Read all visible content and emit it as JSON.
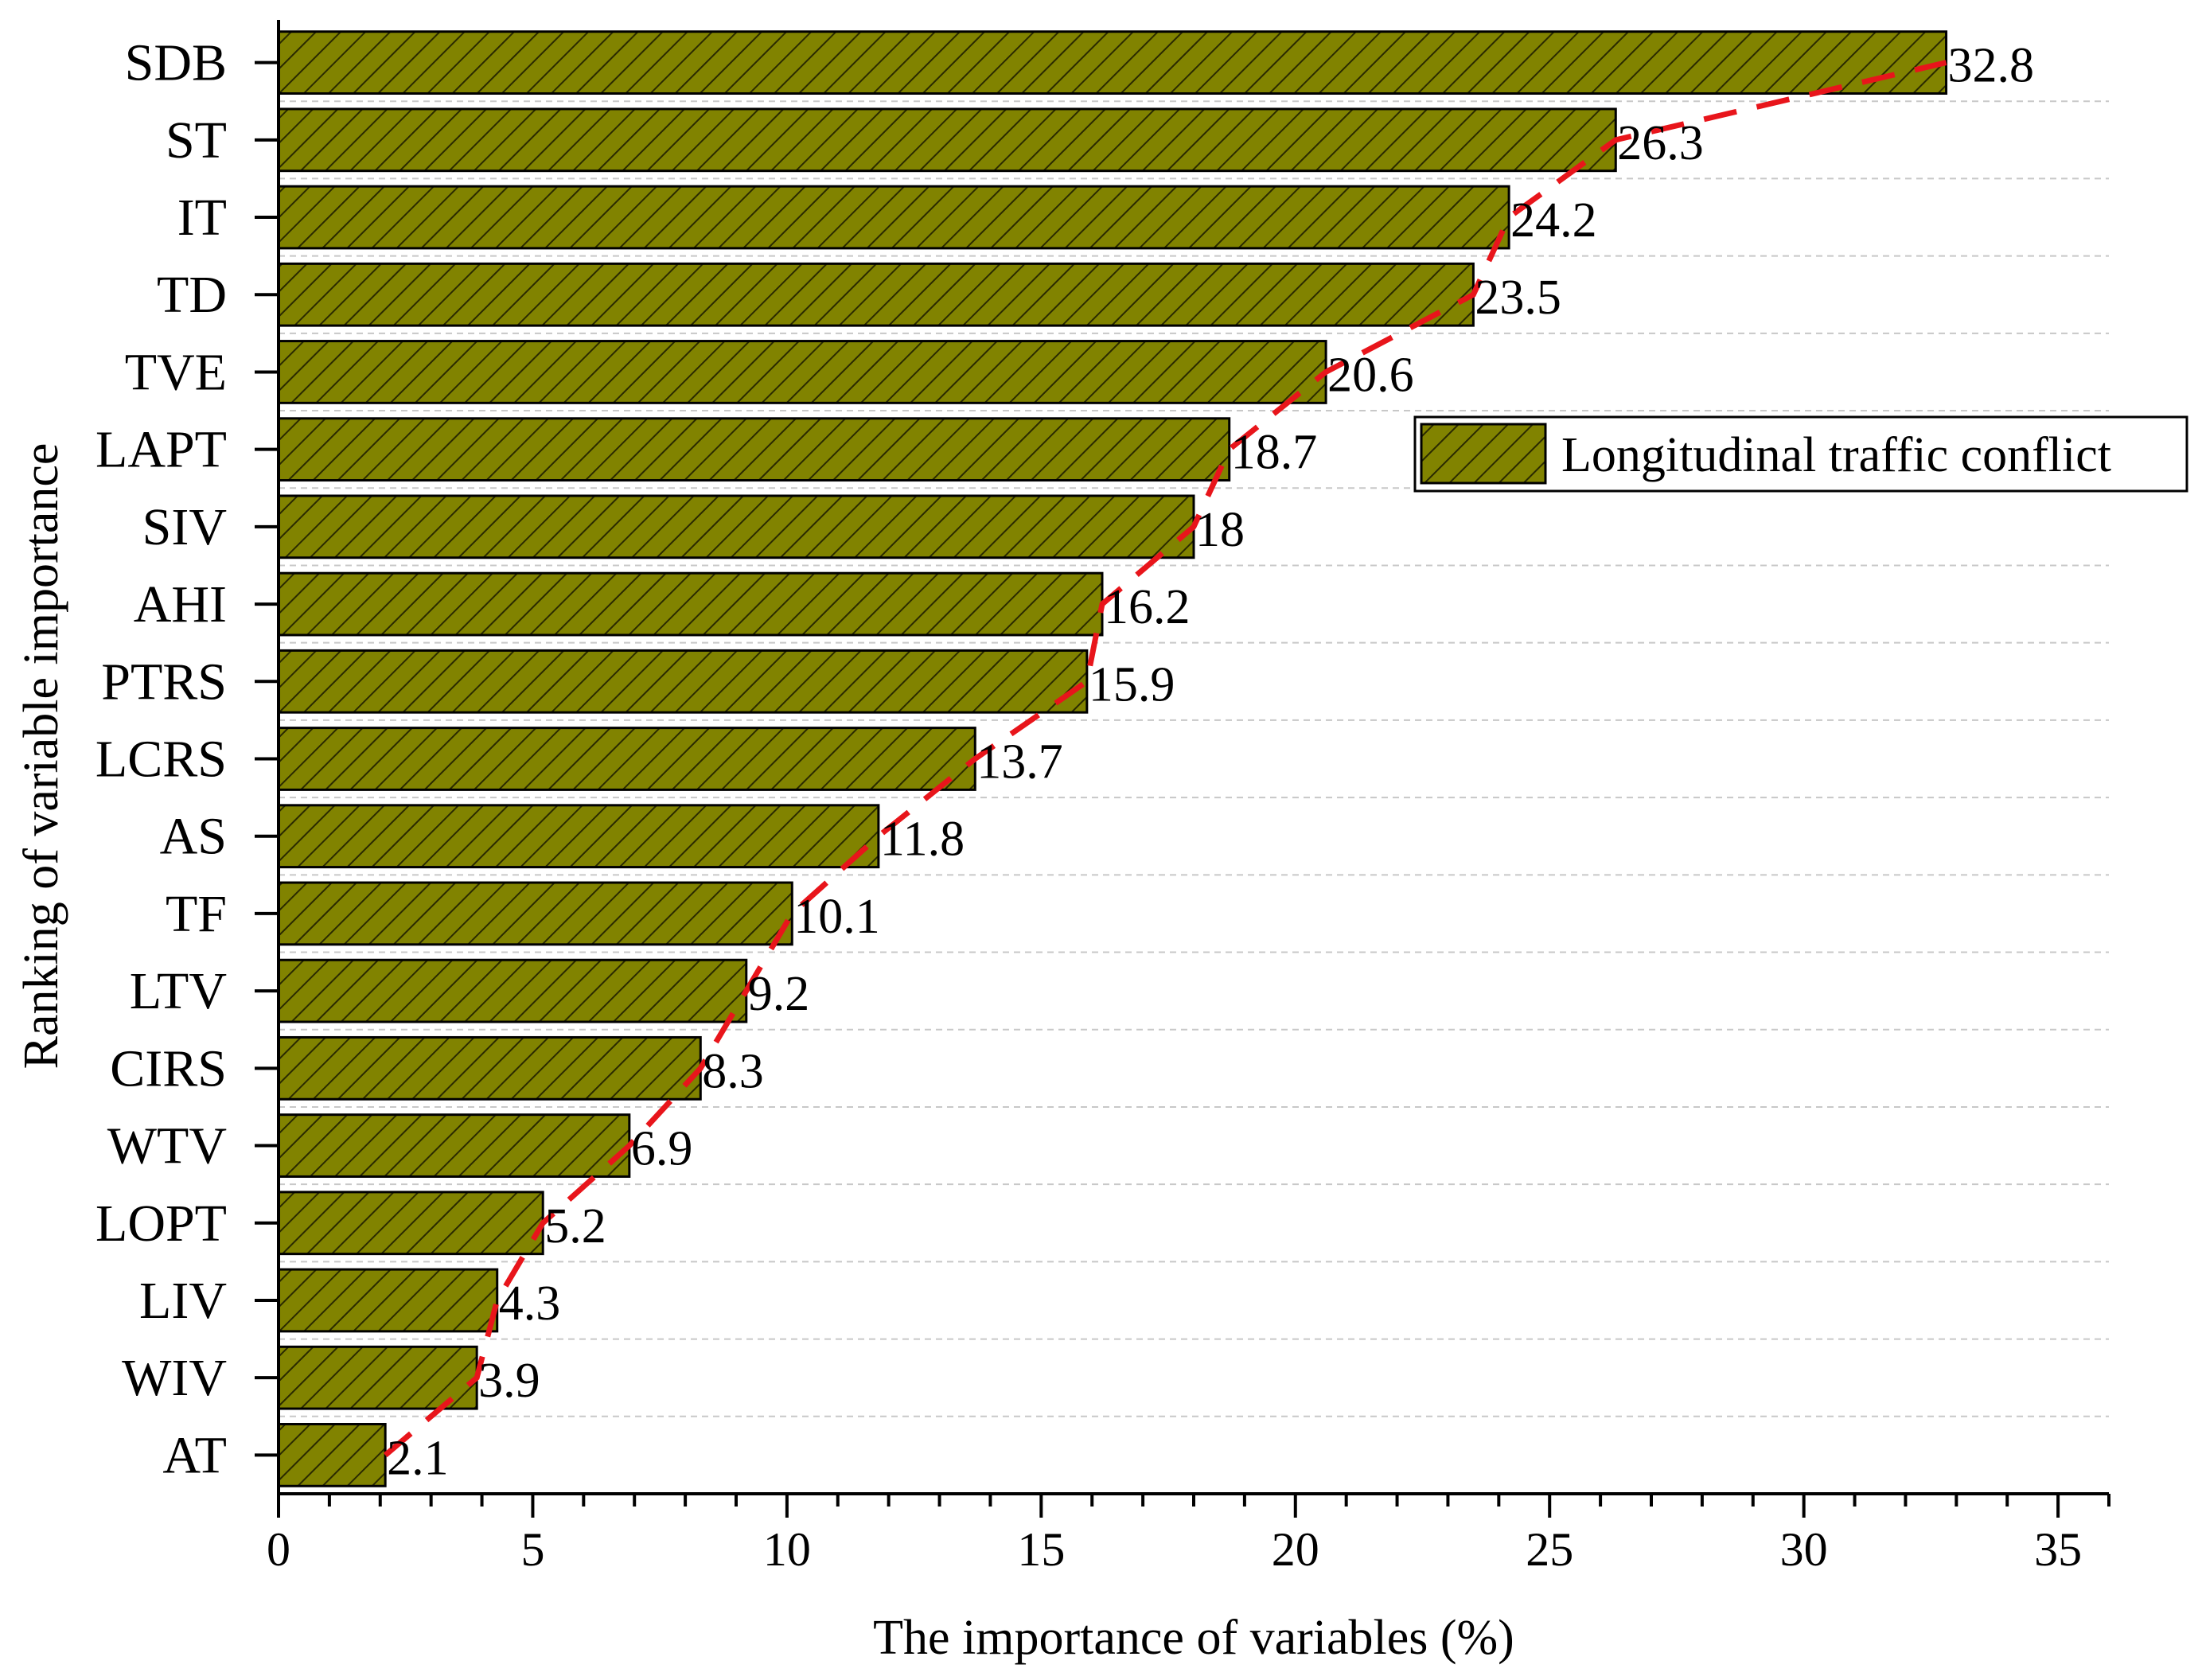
{
  "chart_data": {
    "type": "bar",
    "orientation": "horizontal",
    "title": "",
    "xlabel": "The importance of variables (%)",
    "ylabel": "Ranking of variable importance",
    "xlim": [
      0,
      36
    ],
    "xticks": [
      0,
      5,
      10,
      15,
      20,
      25,
      30,
      35
    ],
    "categories": [
      "SDB",
      "ST",
      "IT",
      "TD",
      "TVE",
      "LAPT",
      "SIV",
      "AHI",
      "PTRS",
      "LCRS",
      "AS",
      "TF",
      "LTV",
      "CIRS",
      "WTV",
      "LOPT",
      "LIV",
      "WIV",
      "AT"
    ],
    "values": [
      32.8,
      26.3,
      24.2,
      23.5,
      20.6,
      18.7,
      18,
      16.2,
      15.9,
      13.7,
      11.8,
      10.1,
      9.2,
      8.3,
      6.9,
      5.2,
      4.3,
      3.9,
      2.1
    ],
    "value_labels": [
      "32.8",
      "26.3",
      "24.2",
      "23.5",
      "20.6",
      "18.7",
      "18",
      "16.2",
      "15.9",
      "13.7",
      "11.8",
      "10.1",
      "9.2",
      "8.3",
      "6.9",
      "5.2",
      "4.3",
      "3.9",
      "2.1"
    ],
    "series": [
      {
        "name": "Longitudinal traffic conflict",
        "values": [
          32.8,
          26.3,
          24.2,
          23.5,
          20.6,
          18.7,
          18,
          16.2,
          15.9,
          13.7,
          11.8,
          10.1,
          9.2,
          8.3,
          6.9,
          5.2,
          4.3,
          3.9,
          2.1
        ]
      }
    ],
    "legend": {
      "label": "Longitudinal traffic conflict",
      "placement": "right"
    },
    "trend_line": {
      "style": "dashed",
      "color": "#e8151b",
      "through": "bar ends"
    },
    "grid": "horizontal dashed",
    "colors": {
      "bar_fill": "#818300",
      "hatch": "#2a2a00",
      "trend": "#e8151b",
      "grid": "#c8c8c8",
      "axis": "#000000"
    }
  }
}
